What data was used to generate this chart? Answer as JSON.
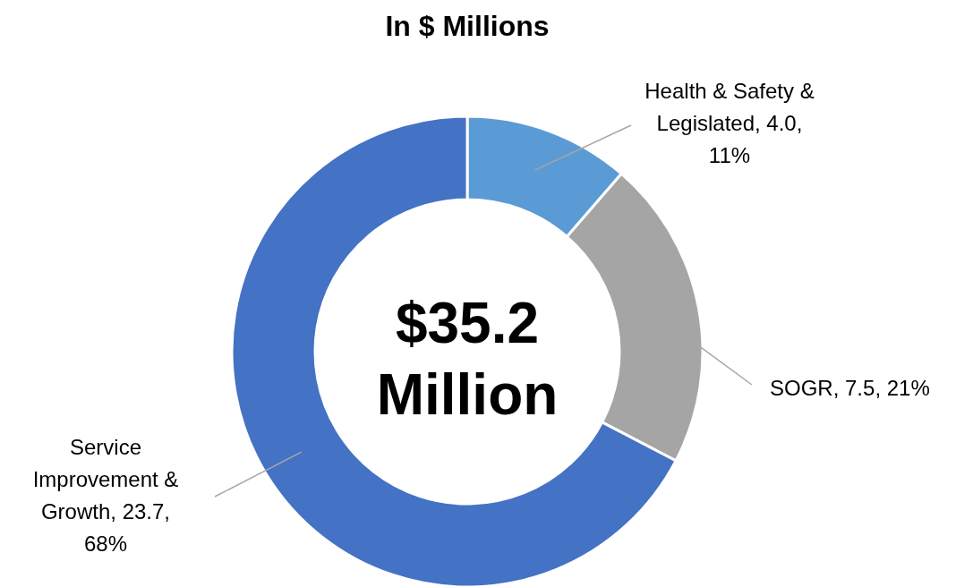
{
  "chart_data": {
    "type": "donut",
    "title": "In $ Millions",
    "categories": [
      "Health & Safety & Legislated",
      "SOGR",
      "Service Improvement & Growth"
    ],
    "values": [
      4.0,
      7.5,
      23.7
    ],
    "value_labels": [
      "4.0, 11%",
      "7.5, 21%",
      "23.7, 68%"
    ],
    "colors": [
      "#5b9bd5",
      "#a5a5a5",
      "#4472c4"
    ],
    "annotations": [
      "$35.2 Million"
    ]
  }
}
